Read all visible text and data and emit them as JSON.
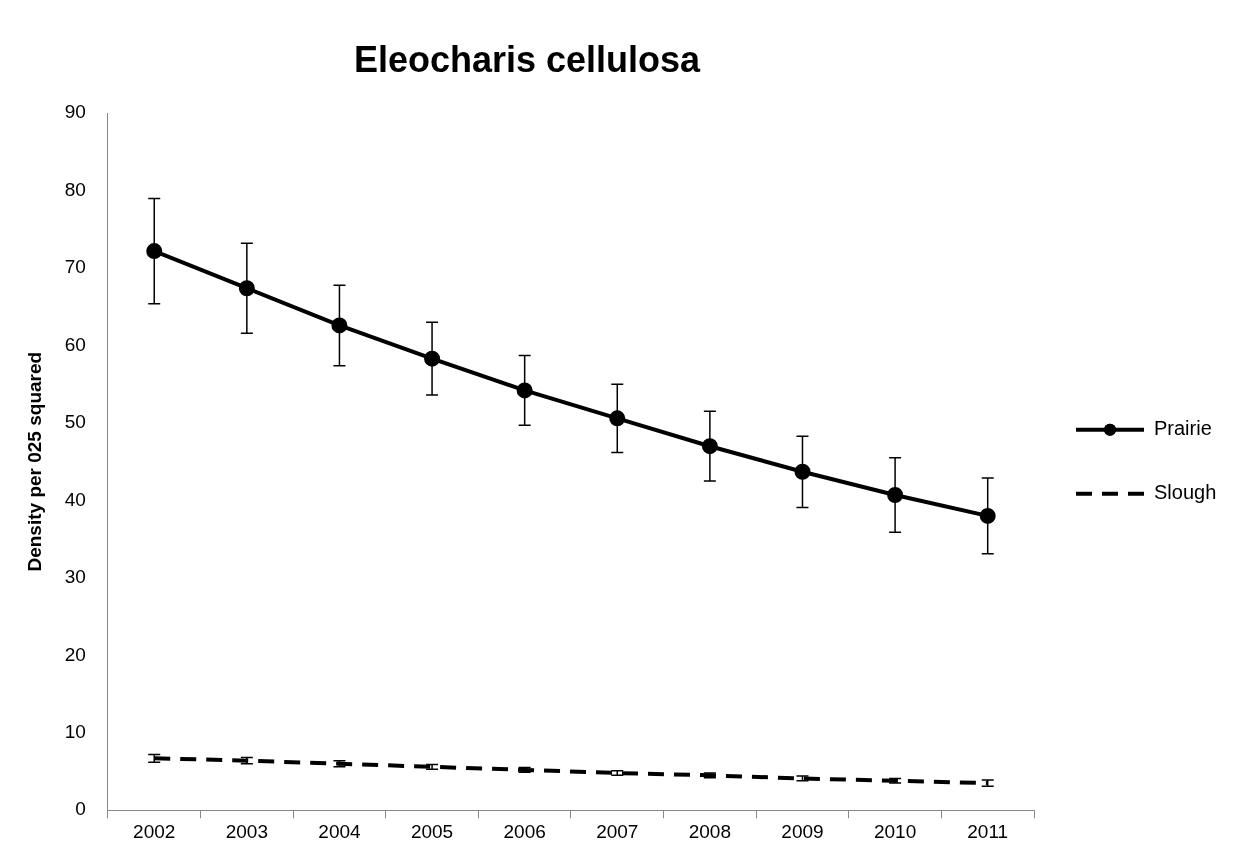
{
  "chart_data": {
    "type": "line",
    "title": "Eleocharis cellulosa",
    "ylabel": "Density per 025 squared",
    "categories": [
      "2002",
      "2003",
      "2004",
      "2005",
      "2006",
      "2007",
      "2008",
      "2009",
      "2010",
      "2011"
    ],
    "series": [
      {
        "name": "Prairie",
        "color": "#000000",
        "marker": "circle",
        "line_style": "solid",
        "values": [
          72.2,
          67.4,
          62.6,
          58.3,
          54.2,
          50.6,
          47.0,
          43.7,
          40.7,
          38.0
        ],
        "errors": [
          6.8,
          5.8,
          5.2,
          4.7,
          4.5,
          4.4,
          4.5,
          4.6,
          4.8,
          4.9
        ]
      },
      {
        "name": "Slough",
        "color": "#000000",
        "marker": "none",
        "line_style": "dashed",
        "values": [
          6.7,
          6.4,
          6.0,
          5.6,
          5.2,
          4.8,
          4.5,
          4.1,
          3.8,
          3.5
        ],
        "errors": [
          0.5,
          0.4,
          0.4,
          0.3,
          0.3,
          0.3,
          0.3,
          0.3,
          0.3,
          0.4
        ]
      }
    ],
    "ylim": [
      0,
      90
    ],
    "yticks": [
      0,
      10,
      20,
      30,
      40,
      50,
      60,
      70,
      80,
      90
    ],
    "grid": false,
    "legend": "right"
  }
}
